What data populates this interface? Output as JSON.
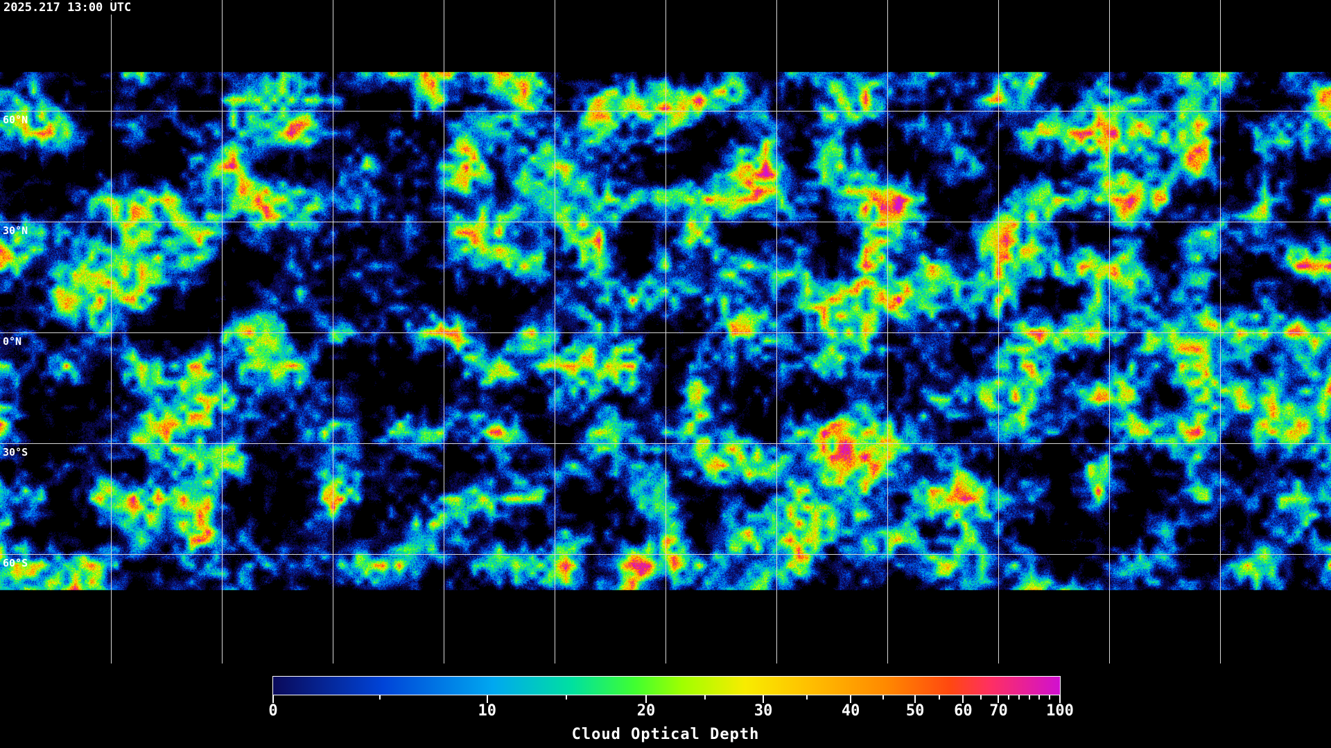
{
  "timestamp": "2025.217 13:00 UTC",
  "map": {
    "projection": "equirectangular",
    "latitude_labels": [
      "60°N",
      "30°N",
      "0°N",
      "30°S",
      "60°S"
    ],
    "gridline_color": "#d8d8d8",
    "coastline_color": "#ffffff"
  },
  "colorbar": {
    "label": "Cloud Optical Depth",
    "range": [
      0,
      100
    ],
    "tick_labels": [
      "0",
      "10",
      "20",
      "30",
      "40",
      "50",
      "60",
      "70",
      "100"
    ],
    "colors": [
      "#0a0a5a",
      "#0044d8",
      "#00a8f0",
      "#00e0a0",
      "#40ff30",
      "#a0ff00",
      "#f8ec00",
      "#ffc000",
      "#ff8800",
      "#ff4810",
      "#ff3060",
      "#d010d0"
    ]
  }
}
